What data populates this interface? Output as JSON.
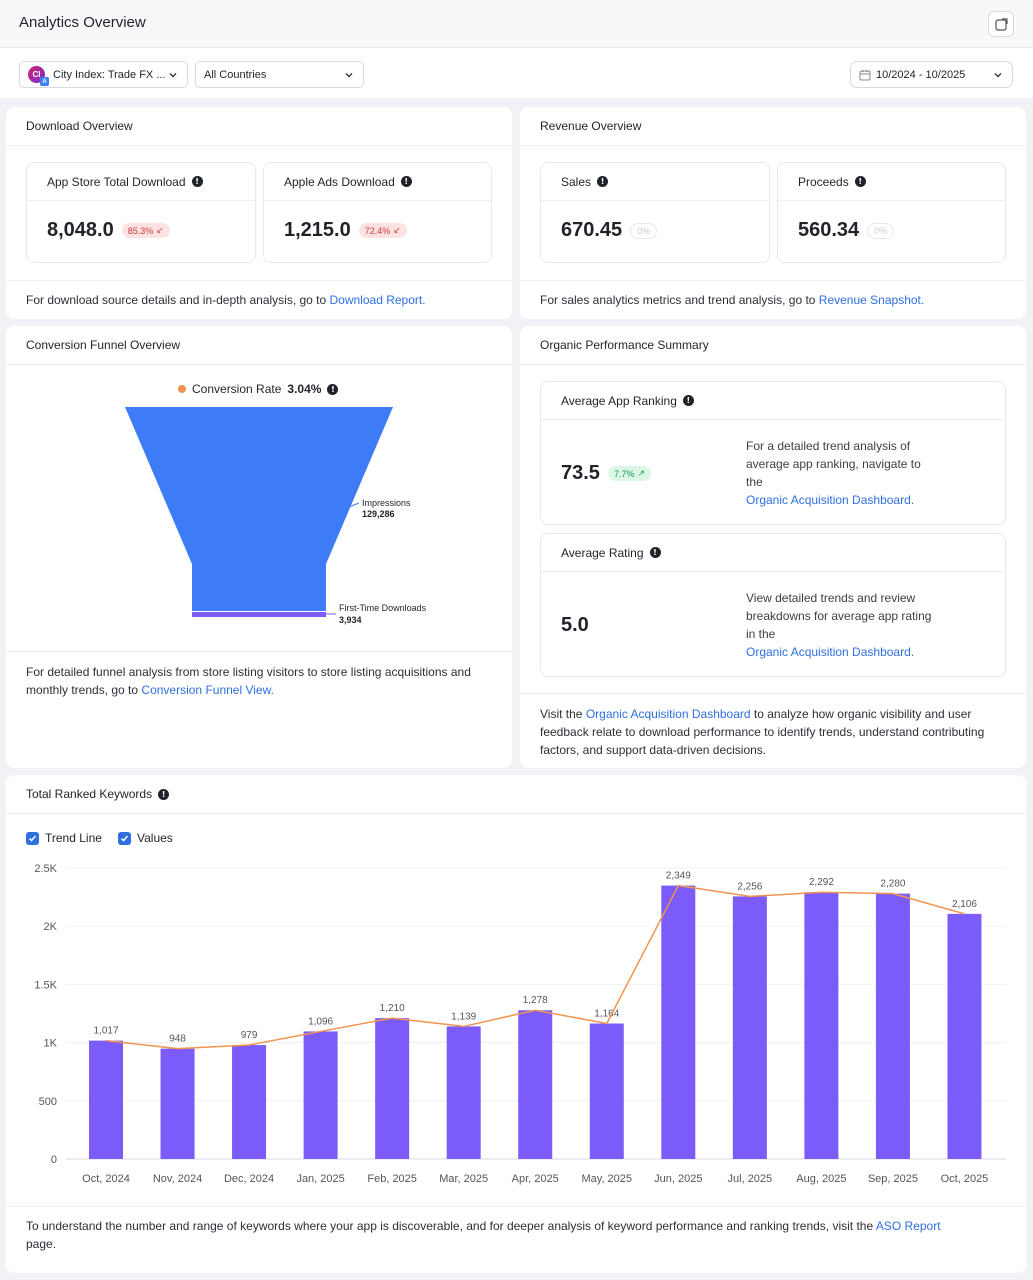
{
  "header": {
    "title": "Analytics Overview",
    "external_icon": "open-external-icon"
  },
  "filters": {
    "app": {
      "icon_text": "CI",
      "label": "City Index: Trade FX ..."
    },
    "country": {
      "label": "All Countries"
    },
    "date_range": {
      "label": "10/2024 - 10/2025"
    }
  },
  "download_overview": {
    "title": "Download Overview",
    "metrics": [
      {
        "label": "App Store Total Download",
        "value": "8,048.0",
        "change": "85.3%",
        "direction": "down"
      },
      {
        "label": "Apple Ads Download",
        "value": "1,215.0",
        "change": "72.4%",
        "direction": "down"
      }
    ],
    "footer_text": "For download source details and in-depth analysis, go to ",
    "footer_link": "Download Report."
  },
  "revenue_overview": {
    "title": "Revenue Overview",
    "metrics": [
      {
        "label": "Sales",
        "value": "670.45",
        "change": "0%"
      },
      {
        "label": "Proceeds",
        "value": "560.34",
        "change": "0%"
      }
    ],
    "footer_text": "For sales analytics metrics and trend analysis, go to ",
    "footer_link": "Revenue Snapshot."
  },
  "conversion_funnel": {
    "title": "Conversion Funnel Overview",
    "rate_label": "Conversion Rate",
    "rate_value": "3.04%",
    "impressions_label": "Impressions",
    "impressions_value": "129,286",
    "downloads_label": "First-Time Downloads",
    "downloads_value": "3,934",
    "footer_text_1": "For detailed funnel analysis from store listing visitors to store listing acquisitions and",
    "footer_text_2": "monthly trends, go to ",
    "footer_link": "Conversion Funnel View."
  },
  "organic_performance": {
    "title": "Organic Performance Summary",
    "ranking": {
      "label": "Average App Ranking",
      "value": "73.5",
      "change": "7.7%",
      "desc": "For a detailed trend analysis of average app ranking, navigate to the",
      "link": "Organic Acquisition Dashboard."
    },
    "rating": {
      "label": "Average Rating",
      "value": "5.0",
      "desc": "View detailed trends and review breakdowns for average app rating in the",
      "link": "Organic Acquisition Dashboard."
    },
    "footer_pre": "Visit the ",
    "footer_link": "Organic Acquisition Dashboard",
    "footer_post": " to analyze how organic visibility and user feedback relate to download performance to identify trends, understand contributing factors, and support data-driven decisions."
  },
  "keywords": {
    "title": "Total Ranked Keywords",
    "toggle_trend": "Trend Line",
    "toggle_values": "Values",
    "footer_text": "To understand the number and range of keywords where your app is discoverable, and for deeper analysis of keyword performance and ranking trends, visit the ",
    "footer_link": "ASO Report",
    "footer_post": "page."
  },
  "chart_data": {
    "type": "bar",
    "categories": [
      "Oct, 2024",
      "Nov, 2024",
      "Dec, 2024",
      "Jan, 2025",
      "Feb, 2025",
      "Mar, 2025",
      "Apr, 2025",
      "May, 2025",
      "Jun, 2025",
      "Jul, 2025",
      "Aug, 2025",
      "Sep, 2025",
      "Oct, 2025"
    ],
    "values": [
      1017,
      948,
      979,
      1096,
      1210,
      1139,
      1278,
      1164,
      2349,
      2256,
      2292,
      2280,
      2106
    ],
    "labels": [
      "1,017",
      "948",
      "979",
      "1,096",
      "1,210",
      "1,139",
      "1,278",
      "1,164",
      "2,349",
      "2,256",
      "2,292",
      "2,280",
      "2,106"
    ],
    "yticks": [
      "0",
      "500",
      "1K",
      "1.5K",
      "2K",
      "2.5K"
    ],
    "ylim": [
      0,
      2500
    ],
    "trend_line": true,
    "bar_color": "#7b5cfa",
    "line_color": "#f0944f",
    "grid": true
  },
  "colors": {
    "accent": "#2f6fe0",
    "funnel": "#3d7cf6",
    "funnel_bottom": "#7b5cfa",
    "dot": "#f0944f"
  }
}
